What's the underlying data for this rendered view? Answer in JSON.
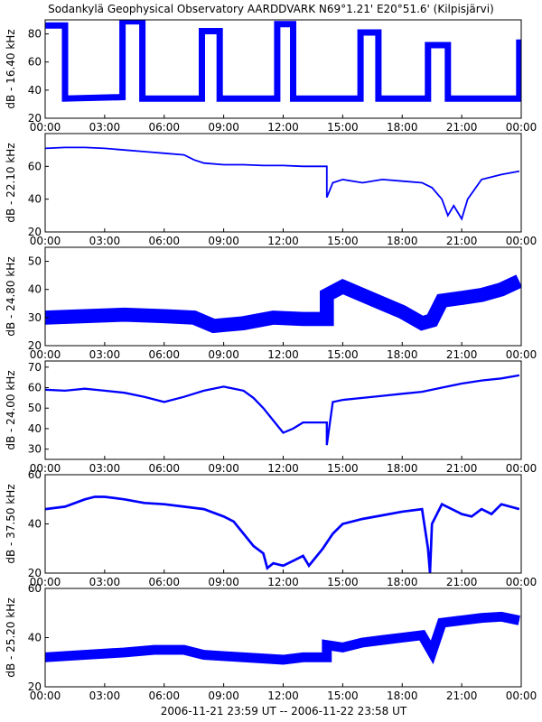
{
  "figure": {
    "title": "Sodankylä Geophysical Observatory AARDDVARK N69°1.21' E20°51.6' (Kilpisjärvi)",
    "footer": "2006-11-21 23:59 UT -- 2006-11-22 23:58 UT",
    "line_color": "#0000ff",
    "axis_color": "#000000"
  },
  "chart_data": [
    {
      "type": "line",
      "ylabel": "dB - 16.40 kHz",
      "ylim": [
        20,
        90
      ],
      "yticks": [
        20,
        40,
        60,
        80
      ],
      "xlim": [
        0,
        24
      ],
      "xticks": [
        "00:00",
        "03:00",
        "06:00",
        "09:00",
        "12:00",
        "15:00",
        "18:00",
        "21:00",
        "00:00"
      ],
      "series": [
        {
          "x": [
            0.0,
            1.0,
            1.0,
            3.9,
            3.9,
            4.9,
            4.9,
            7.9,
            7.9,
            8.8,
            8.8,
            11.7,
            11.7,
            12.5,
            12.5,
            14.2,
            14.2,
            15.9,
            15.9,
            16.8,
            16.8,
            19.3,
            19.3,
            20.3,
            20.3,
            23.9,
            23.9
          ],
          "y": [
            86,
            86,
            34,
            35,
            89,
            89,
            34,
            34,
            82,
            82,
            34,
            34,
            87,
            87,
            34,
            34,
            34,
            34,
            81,
            81,
            34,
            34,
            72,
            72,
            34,
            34,
            76
          ],
          "band": 9
        }
      ]
    },
    {
      "type": "line",
      "ylabel": "dB - 22.10 kHz",
      "ylim": [
        20,
        80
      ],
      "yticks": [
        20,
        40,
        60
      ],
      "xlim": [
        0,
        24
      ],
      "xticks": [
        "00:00",
        "03:00",
        "06:00",
        "09:00",
        "12:00",
        "15:00",
        "18:00",
        "21:00",
        "00:00"
      ],
      "series": [
        {
          "x": [
            0.0,
            1.0,
            2.0,
            3.0,
            4.0,
            5.0,
            6.0,
            7.0,
            7.5,
            8.0,
            9.0,
            10.0,
            11.0,
            12.0,
            13.0,
            14.0,
            14.2,
            14.2,
            14.5,
            15.0,
            16.0,
            17.0,
            18.0,
            19.0,
            19.5,
            20.0,
            20.3,
            20.6,
            21.0,
            21.3,
            22.0,
            23.0,
            23.9
          ],
          "y": [
            71,
            71.5,
            71.5,
            71,
            70,
            69,
            68,
            67,
            64,
            62,
            61,
            61,
            60.5,
            60.5,
            60,
            60,
            60,
            41,
            50,
            52,
            50,
            52,
            51,
            50,
            47,
            40,
            30,
            36,
            28,
            40,
            52,
            55,
            57
          ],
          "band": 2
        }
      ]
    },
    {
      "type": "line",
      "ylabel": "dB - 24.80 kHz",
      "ylim": [
        20,
        55
      ],
      "yticks": [
        20,
        30,
        40,
        50
      ],
      "xlim": [
        0,
        24
      ],
      "xticks": [
        "00:00",
        "03:00",
        "06:00",
        "09:00",
        "12:00",
        "15:00",
        "18:00",
        "21:00",
        "00:00"
      ],
      "series": [
        {
          "x": [
            0.0,
            2.0,
            4.0,
            6.0,
            7.5,
            8.5,
            10.0,
            11.5,
            13.0,
            14.2,
            14.2,
            15.0,
            16.0,
            17.0,
            18.0,
            19.0,
            19.5,
            20.0,
            21.0,
            22.0,
            23.0,
            23.9
          ],
          "y": [
            30,
            30.5,
            31,
            30.5,
            30,
            27,
            28,
            30,
            29.5,
            29.5,
            38,
            41,
            38,
            35,
            32,
            28,
            29,
            36,
            37,
            38,
            40,
            43
          ],
          "band": 10
        }
      ]
    },
    {
      "type": "line",
      "ylabel": "dB - 24.00 kHz",
      "ylim": [
        25,
        73
      ],
      "yticks": [
        30,
        40,
        50,
        60,
        70
      ],
      "xlim": [
        0,
        24
      ],
      "xticks": [
        "00:00",
        "03:00",
        "06:00",
        "09:00",
        "12:00",
        "15:00",
        "18:00",
        "21:00",
        "00:00"
      ],
      "series": [
        {
          "x": [
            0.0,
            1.0,
            2.0,
            3.0,
            4.0,
            5.0,
            6.0,
            7.0,
            8.0,
            9.0,
            10.0,
            10.5,
            11.0,
            11.5,
            12.0,
            12.5,
            13.0,
            14.0,
            14.2,
            14.2,
            14.5,
            15.0,
            16.0,
            17.0,
            18.0,
            19.0,
            20.0,
            21.0,
            22.0,
            23.0,
            23.9
          ],
          "y": [
            59,
            58.5,
            59.5,
            58.5,
            57.5,
            55.5,
            53,
            55.5,
            58.5,
            60.5,
            58.5,
            55,
            50,
            44,
            38,
            40,
            43,
            43,
            43,
            32,
            53,
            54,
            55,
            56,
            57,
            58,
            60,
            62,
            63.5,
            64.5,
            66
          ],
          "band": 2
        }
      ]
    },
    {
      "type": "line",
      "ylabel": "dB - 37.50 kHz",
      "ylim": [
        20,
        60
      ],
      "yticks": [
        20,
        40,
        60
      ],
      "xlim": [
        0,
        24
      ],
      "xticks": [
        "00:00",
        "03:00",
        "06:00",
        "09:00",
        "12:00",
        "15:00",
        "18:00",
        "21:00",
        "00:00"
      ],
      "series": [
        {
          "x": [
            0.0,
            1.0,
            2.0,
            2.5,
            3.0,
            4.0,
            5.0,
            6.0,
            7.0,
            8.0,
            9.0,
            9.5,
            10.0,
            10.5,
            11.0,
            11.2,
            11.5,
            12.0,
            12.5,
            13.0,
            13.3,
            13.5,
            14.0,
            14.5,
            15.0,
            16.0,
            17.0,
            18.0,
            19.0,
            19.3,
            19.4,
            19.5,
            20.0,
            20.5,
            21.0,
            21.5,
            22.0,
            22.5,
            23.0,
            23.9
          ],
          "y": [
            46,
            47,
            50,
            51,
            51,
            50,
            48.5,
            48,
            47,
            46,
            43,
            41,
            36,
            31,
            28,
            22,
            24,
            23,
            25,
            27,
            23,
            25,
            30,
            36,
            40,
            42,
            43.5,
            45,
            46,
            30,
            20,
            40,
            48,
            46,
            44,
            43,
            46,
            44,
            48,
            46
          ],
          "band": 2
        }
      ]
    },
    {
      "type": "line",
      "ylabel": "dB - 25.20 kHz",
      "ylim": [
        20,
        60
      ],
      "yticks": [
        20,
        40,
        60
      ],
      "xlim": [
        0,
        24
      ],
      "xticks": [
        "00:00",
        "03:00",
        "06:00",
        "09:00",
        "12:00",
        "15:00",
        "18:00",
        "21:00",
        "00:00"
      ],
      "series": [
        {
          "x": [
            0.0,
            2.0,
            4.0,
            5.5,
            7.0,
            8.0,
            10.0,
            12.0,
            13.0,
            14.2,
            14.2,
            15.0,
            16.0,
            17.0,
            18.0,
            19.0,
            19.5,
            20.0,
            21.0,
            22.0,
            23.0,
            23.9
          ],
          "y": [
            32,
            33,
            34,
            35,
            35,
            33,
            32,
            31,
            32,
            32,
            37,
            36,
            38,
            39,
            40,
            41,
            34,
            46,
            47,
            48,
            48.5,
            47
          ],
          "band": 8
        }
      ]
    }
  ]
}
